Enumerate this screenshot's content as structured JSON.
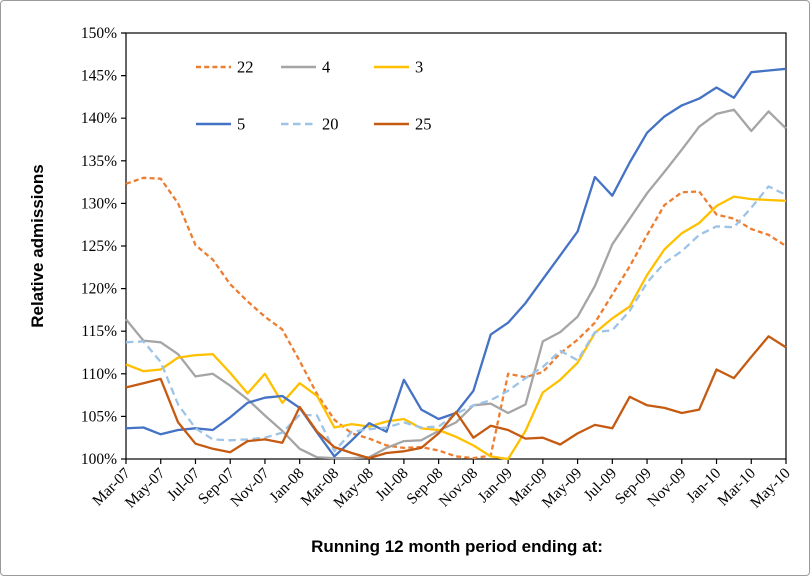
{
  "chart_data": {
    "type": "line",
    "title": "",
    "xlabel": "Running 12 month period ending at:",
    "ylabel": "Relative admissions",
    "ylim": [
      100,
      150
    ],
    "y_tick_step": 5,
    "y_tick_suffix": "%",
    "x_ticks_every": 2,
    "grid": false,
    "legend_position": "inside-top-left",
    "legend_rows": 2,
    "legend_cols": 3,
    "categories": [
      "Mar-07",
      "Apr-07",
      "May-07",
      "Jun-07",
      "Jul-07",
      "Aug-07",
      "Sep-07",
      "Oct-07",
      "Nov-07",
      "Dec-07",
      "Jan-08",
      "Feb-08",
      "Mar-08",
      "Apr-08",
      "May-08",
      "Jun-08",
      "Jul-08",
      "Aug-08",
      "Sep-08",
      "Oct-08",
      "Nov-08",
      "Dec-08",
      "Jan-09",
      "Feb-09",
      "Mar-09",
      "Apr-09",
      "May-09",
      "Jun-09",
      "Jul-09",
      "Aug-09",
      "Sep-09",
      "Oct-09",
      "Nov-09",
      "Dec-09",
      "Jan-10",
      "Feb-10",
      "Mar-10",
      "Apr-10",
      "May-10"
    ],
    "series": [
      {
        "name": "22",
        "color": "#ED7D31",
        "line_style": "dashed",
        "dash": "5 3.2",
        "values": [
          132.3,
          133.0,
          132.9,
          130.0,
          125.1,
          123.4,
          120.5,
          118.5,
          116.7,
          115.2,
          111.5,
          107.6,
          104.6,
          103.0,
          102.4,
          101.6,
          101.3,
          101.4,
          101.0,
          100.3,
          100.1,
          100.4,
          110.0,
          109.6,
          110.2,
          112.4,
          114.0,
          116.0,
          119.3,
          122.6,
          126.3,
          129.8,
          131.3,
          131.4,
          128.7,
          128.2,
          127.0,
          126.3,
          125.0
        ]
      },
      {
        "name": "4",
        "color": "#A5A5A5",
        "line_style": "solid",
        "dash": "",
        "values": [
          116.4,
          113.9,
          113.7,
          112.3,
          109.7,
          110.0,
          108.6,
          107.0,
          105.1,
          103.3,
          101.2,
          100.2,
          100.1,
          100.1,
          100.2,
          101.3,
          102.1,
          102.2,
          103.3,
          104.3,
          106.3,
          106.5,
          105.4,
          106.4,
          113.8,
          114.9,
          116.7,
          120.3,
          125.2,
          128.2,
          131.2,
          133.7,
          136.3,
          139.0,
          140.5,
          141.0,
          138.5,
          140.8,
          138.8
        ]
      },
      {
        "name": "3",
        "color": "#FFC000",
        "line_style": "solid",
        "dash": "",
        "values": [
          111.1,
          110.3,
          110.5,
          111.9,
          112.2,
          112.3,
          110.1,
          107.7,
          110.0,
          106.6,
          108.9,
          107.4,
          103.7,
          104.1,
          103.8,
          104.4,
          104.7,
          103.6,
          103.4,
          102.6,
          101.6,
          100.3,
          100.0,
          103.3,
          107.8,
          109.3,
          111.3,
          114.8,
          116.5,
          117.9,
          121.6,
          124.6,
          126.5,
          127.7,
          129.7,
          130.8,
          130.5,
          130.4,
          130.3
        ]
      },
      {
        "name": "5",
        "color": "#4472C4",
        "line_style": "solid",
        "dash": "",
        "values": [
          103.6,
          103.7,
          102.9,
          103.4,
          103.6,
          103.4,
          104.9,
          106.6,
          107.2,
          107.4,
          106.0,
          103.1,
          100.3,
          102.2,
          104.2,
          103.2,
          109.3,
          105.8,
          104.7,
          105.4,
          108.0,
          114.6,
          116.0,
          118.3,
          121.1,
          123.9,
          126.7,
          133.1,
          130.9,
          134.8,
          138.3,
          140.2,
          141.5,
          142.3,
          143.6,
          142.4,
          145.4,
          145.6,
          145.8
        ]
      },
      {
        "name": "20",
        "color": "#9DC3E6",
        "line_style": "dashed",
        "dash": "7.5 4.5",
        "values": [
          113.7,
          113.8,
          111.4,
          106.4,
          103.6,
          102.3,
          102.2,
          102.3,
          102.5,
          103.1,
          105.2,
          105.1,
          100.9,
          103.2,
          103.5,
          103.7,
          104.3,
          103.7,
          103.8,
          105.3,
          106.3,
          106.9,
          108.0,
          109.5,
          110.8,
          112.7,
          111.6,
          114.9,
          115.1,
          117.4,
          120.7,
          123.0,
          124.4,
          126.3,
          127.3,
          127.2,
          129.5,
          132.0,
          131.0
        ]
      },
      {
        "name": "25",
        "color": "#C55A11",
        "line_style": "solid",
        "dash": "",
        "values": [
          108.4,
          108.9,
          109.4,
          104.3,
          101.8,
          101.2,
          100.8,
          102.1,
          102.3,
          101.9,
          106.1,
          103.2,
          101.4,
          100.7,
          100.1,
          100.7,
          100.9,
          101.3,
          103.0,
          105.5,
          102.5,
          103.9,
          103.4,
          102.4,
          102.5,
          101.7,
          103.0,
          104.0,
          103.6,
          107.3,
          106.3,
          106.0,
          105.4,
          105.8,
          110.5,
          109.5,
          112.0,
          114.4,
          113.1
        ]
      }
    ]
  }
}
